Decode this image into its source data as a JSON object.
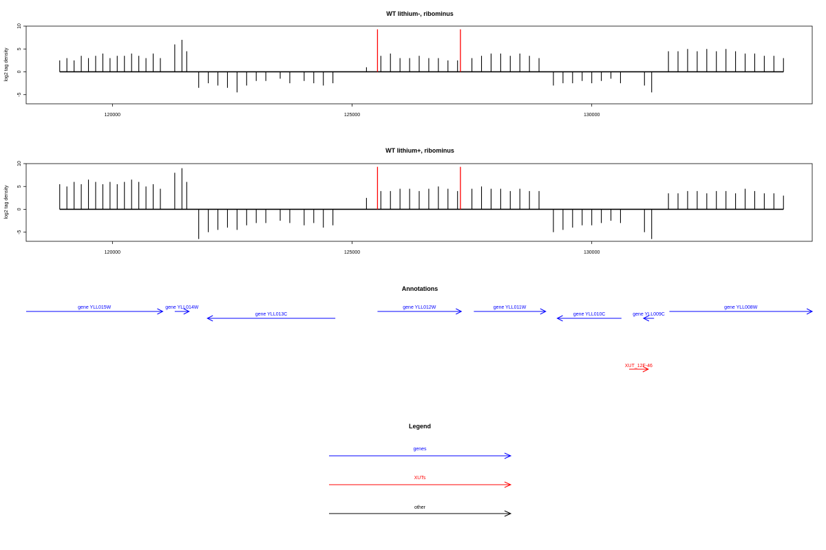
{
  "chart_data": [
    {
      "type": "bar",
      "title": "WT lithium-, ribominus",
      "ylabel": "log2 tag density",
      "xlabel": "",
      "xlim": [
        118200,
        134600
      ],
      "ylim": [
        -7,
        10
      ],
      "yticks": [
        -5,
        0,
        5,
        10
      ],
      "xticks": [
        120000,
        125000,
        130000
      ],
      "xticklabels": [
        "120000",
        "125000",
        "130000"
      ],
      "grid": false,
      "series": [
        {
          "x": [
            118900,
            119050,
            119200,
            119350,
            119500,
            119650,
            119800,
            119950,
            120100,
            120250,
            120400,
            120550,
            120700,
            120850,
            121000,
            121300,
            121450,
            121550,
            121800,
            122000,
            122200,
            122400,
            122600,
            122800,
            123000,
            123200,
            123500,
            123700,
            124000,
            124200,
            124400,
            124600,
            125300,
            125600,
            125800,
            126000,
            126200,
            126400,
            126600,
            126800,
            127000,
            127200,
            127500,
            127700,
            127900,
            128100,
            128300,
            128500,
            128700,
            128900,
            129200,
            129400,
            129600,
            129800,
            130000,
            130200,
            130400,
            130600,
            131100,
            131250,
            131600,
            131800,
            132000,
            132200,
            132400,
            132600,
            132800,
            133000,
            133200,
            133400,
            133600,
            133800,
            134000
          ],
          "values": [
            2.5,
            3,
            2.5,
            3.5,
            3,
            3.5,
            4,
            3,
            3.5,
            3.5,
            4,
            3.5,
            3,
            4,
            3,
            6,
            7,
            4.5,
            -3.5,
            -2.5,
            -3,
            -3.5,
            -4.5,
            -3,
            -2,
            -2,
            -1.5,
            -2.5,
            -2,
            -2.5,
            -3,
            -2.5,
            1,
            3.5,
            4,
            3,
            3,
            3.5,
            3,
            3,
            2.5,
            2.5,
            3,
            3.5,
            4,
            4,
            3.5,
            4,
            3.5,
            3,
            -3,
            -2.5,
            -2.5,
            -2,
            -2.5,
            -2,
            -1.5,
            -2.5,
            -3,
            -4.5,
            4.5,
            4.5,
            5,
            4.5,
            5,
            4.5,
            5,
            4.5,
            4,
            4,
            3.5,
            3.5,
            3
          ]
        }
      ],
      "markers": [
        125530,
        127260
      ]
    },
    {
      "type": "bar",
      "title": "WT lithium+, ribominus",
      "ylabel": "log2 tag density",
      "xlabel": "",
      "xlim": [
        118200,
        134600
      ],
      "ylim": [
        -7,
        10
      ],
      "yticks": [
        -5,
        0,
        5,
        10
      ],
      "xticks": [
        120000,
        125000,
        130000
      ],
      "xticklabels": [
        "120000",
        "125000",
        "130000"
      ],
      "grid": false,
      "series": [
        {
          "x": [
            118900,
            119050,
            119200,
            119350,
            119500,
            119650,
            119800,
            119950,
            120100,
            120250,
            120400,
            120550,
            120700,
            120850,
            121000,
            121300,
            121450,
            121550,
            121800,
            122000,
            122200,
            122400,
            122600,
            122800,
            123000,
            123200,
            123500,
            123700,
            124000,
            124200,
            124400,
            124600,
            125300,
            125600,
            125800,
            126000,
            126200,
            126400,
            126600,
            126800,
            127000,
            127200,
            127500,
            127700,
            127900,
            128100,
            128300,
            128500,
            128700,
            128900,
            129200,
            129400,
            129600,
            129800,
            130000,
            130200,
            130400,
            130600,
            131100,
            131250,
            131600,
            131800,
            132000,
            132200,
            132400,
            132600,
            132800,
            133000,
            133200,
            133400,
            133600,
            133800,
            134000
          ],
          "values": [
            5.5,
            5,
            6,
            5.5,
            6.5,
            6,
            5.5,
            6,
            5.5,
            6,
            6.5,
            6,
            5,
            5.5,
            4.5,
            8,
            9,
            6,
            -6.5,
            -5,
            -4.5,
            -4,
            -4.5,
            -3.5,
            -3,
            -3,
            -2.5,
            -3,
            -3.5,
            -3,
            -4,
            -3.5,
            2.5,
            4,
            4,
            4.5,
            4.5,
            4,
            4.5,
            5,
            4.5,
            4,
            4.5,
            5,
            4.5,
            4.5,
            4,
            4.5,
            4,
            4,
            -5,
            -4.5,
            -4,
            -3.5,
            -3.5,
            -3,
            -2.5,
            -3,
            -5,
            -6.5,
            3.5,
            3.5,
            4,
            4,
            3.5,
            4,
            4,
            3.5,
            4.5,
            4,
            3.5,
            3.5,
            3
          ]
        }
      ],
      "markers": [
        125530,
        127260
      ]
    }
  ],
  "annotations": {
    "title": "Annotations",
    "genes": [
      {
        "label": "gene YLL015W",
        "start": 118200,
        "end": 121050,
        "strand": "+",
        "row": 0
      },
      {
        "label": "gene YLL014W",
        "start": 121300,
        "end": 121600,
        "strand": "+",
        "row": 0
      },
      {
        "label": "gene YLL013C",
        "start": 121980,
        "end": 124650,
        "strand": "-",
        "row": 1
      },
      {
        "label": "gene YLL012W",
        "start": 125530,
        "end": 127280,
        "strand": "+",
        "row": 0
      },
      {
        "label": "gene YLL011W",
        "start": 127540,
        "end": 129040,
        "strand": "+",
        "row": 0
      },
      {
        "label": "gene YLL010C",
        "start": 129280,
        "end": 130620,
        "strand": "-",
        "row": 1
      },
      {
        "label": "gene YLL009C",
        "start": 131080,
        "end": 131300,
        "strand": "-",
        "row": 1
      },
      {
        "label": "gene YLL008W",
        "start": 131620,
        "end": 134600,
        "strand": "+",
        "row": 0
      }
    ],
    "xuts": [
      {
        "label": "XUT_12F-46",
        "start": 130780,
        "end": 131180,
        "strand": "+"
      }
    ]
  },
  "legend": {
    "title": "Legend",
    "items": [
      {
        "label": "genes",
        "color": "#0000ff"
      },
      {
        "label": "XUTs",
        "color": "#ff0000"
      },
      {
        "label": "other",
        "color": "#000000"
      }
    ]
  },
  "colors": {
    "bars": "#000000",
    "marker": "#ff0000",
    "gene": "#0000ff",
    "xut": "#ff0000"
  }
}
